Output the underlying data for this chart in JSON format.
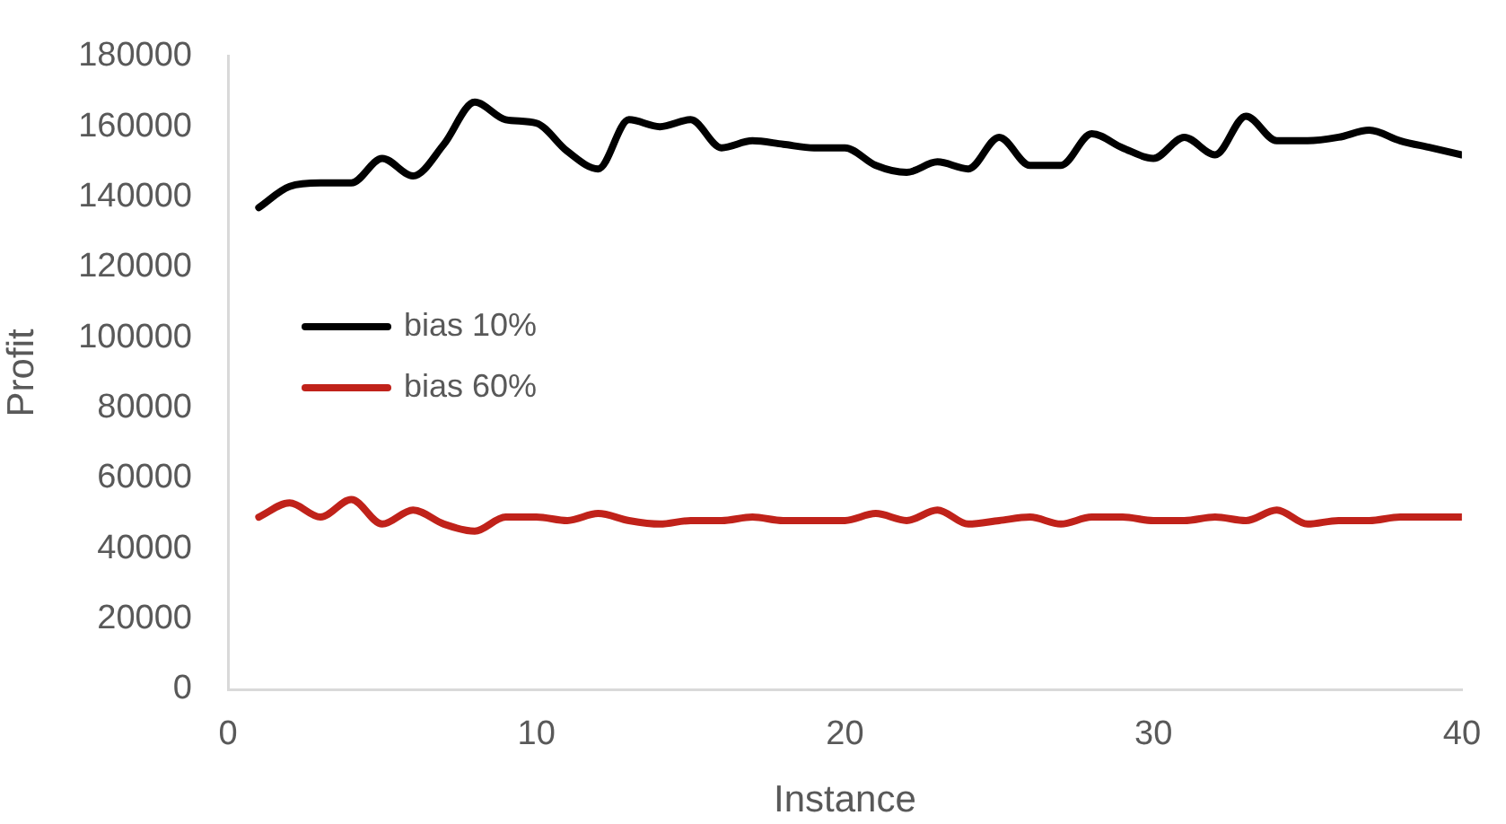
{
  "chart_data": {
    "type": "line",
    "xlabel": "Instance",
    "ylabel": "Profit",
    "x": [
      1,
      2,
      3,
      4,
      5,
      6,
      7,
      8,
      9,
      10,
      11,
      12,
      13,
      14,
      15,
      16,
      17,
      18,
      19,
      20,
      21,
      22,
      23,
      24,
      25,
      26,
      27,
      28,
      29,
      30,
      31,
      32,
      33,
      34,
      35,
      36,
      37,
      38,
      39,
      40
    ],
    "xlim": [
      0,
      40
    ],
    "xticks": [
      0,
      10,
      20,
      30,
      40
    ],
    "ylim": [
      0,
      180000
    ],
    "yticks": [
      0,
      20000,
      40000,
      60000,
      80000,
      100000,
      120000,
      140000,
      160000,
      180000
    ],
    "grid": false,
    "legend": "left",
    "marker": "none",
    "line_style": "solid",
    "series": [
      {
        "name": "bias 10%",
        "color": "#000000",
        "values": [
          137000,
          143000,
          144000,
          144000,
          151000,
          146000,
          155000,
          167000,
          162000,
          161000,
          153000,
          148000,
          162000,
          160000,
          162000,
          154000,
          156000,
          155000,
          154000,
          154000,
          149000,
          147000,
          150000,
          148000,
          157000,
          149000,
          149000,
          158000,
          154000,
          151000,
          157000,
          152000,
          163000,
          156000,
          156000,
          157000,
          159000,
          156000,
          154000,
          152000
        ]
      },
      {
        "name": "bias 60%",
        "color": "#c0221a",
        "values": [
          49000,
          53000,
          49000,
          54000,
          47000,
          51000,
          47000,
          45000,
          49000,
          49000,
          48000,
          50000,
          48000,
          47000,
          48000,
          48000,
          49000,
          48000,
          48000,
          48000,
          50000,
          48000,
          51000,
          47000,
          48000,
          49000,
          47000,
          49000,
          49000,
          48000,
          48000,
          49000,
          48000,
          51000,
          47000,
          48000,
          48000,
          49000,
          49000,
          49000
        ]
      }
    ]
  }
}
